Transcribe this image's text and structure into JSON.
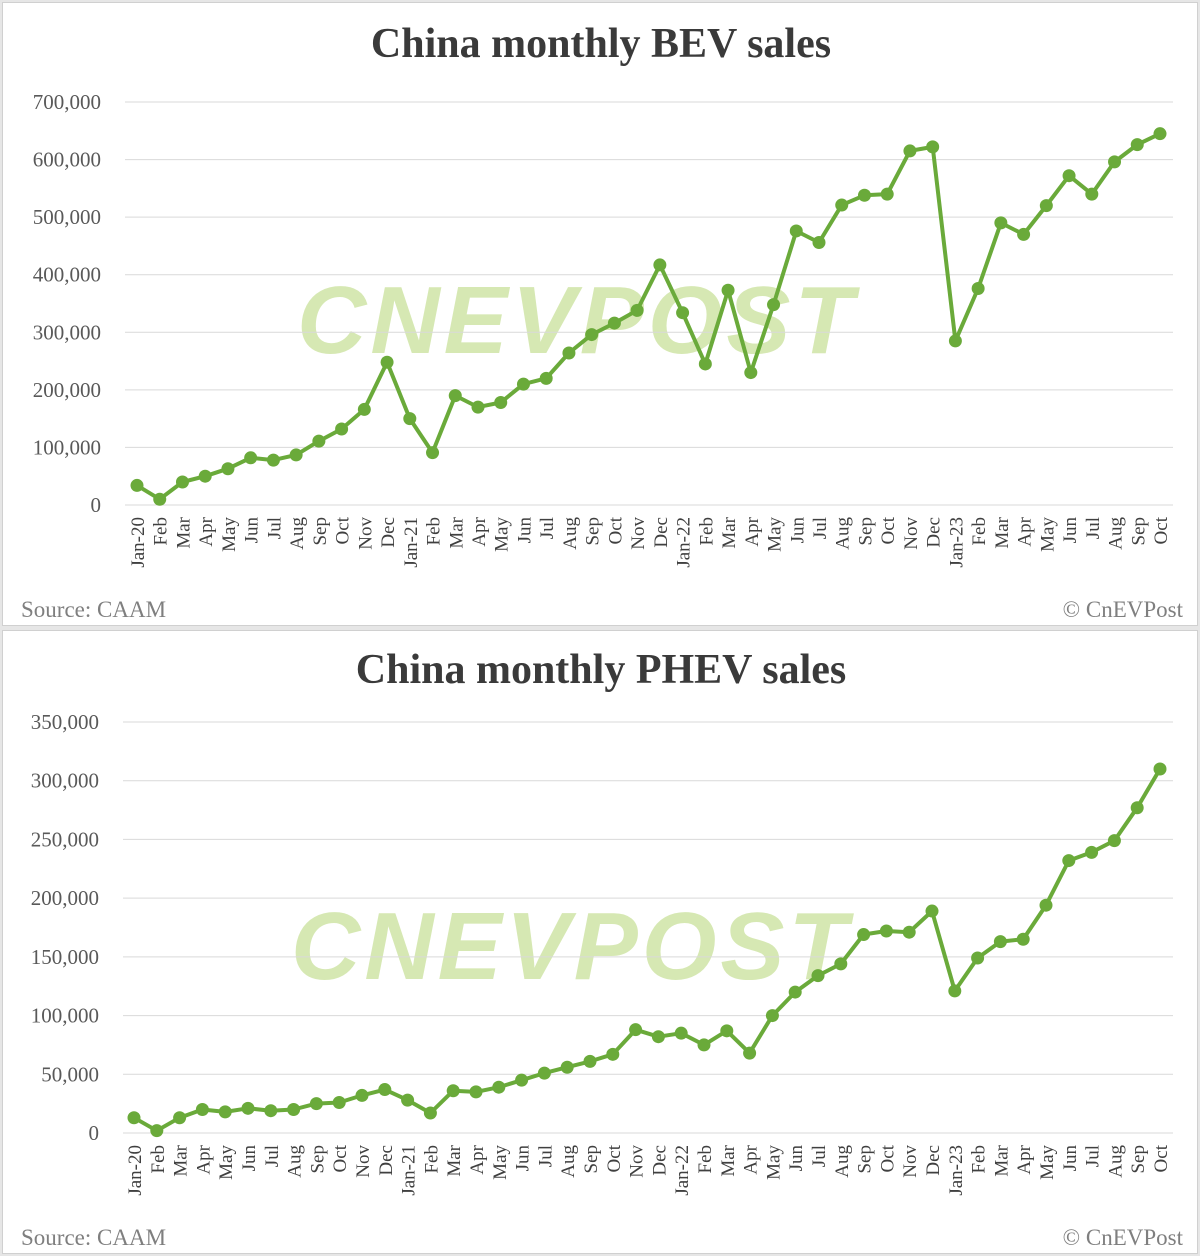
{
  "watermark_text": "CNEVPOST",
  "colors": {
    "line": "#6aaa3a",
    "marker": "#6aaa3a",
    "watermark": "#c9e19a"
  },
  "chart_data": [
    {
      "type": "line",
      "title": "China monthly BEV sales",
      "source": "Source: CAAM",
      "credit": "© CnEVPost",
      "xlabel": "",
      "ylabel": "",
      "ylim": [
        0,
        700000
      ],
      "yticks": [
        "0",
        "100,000",
        "200,000",
        "300,000",
        "400,000",
        "500,000",
        "600,000",
        "700,000"
      ],
      "grid": true,
      "categories": [
        "Jan-20",
        "Feb",
        "Mar",
        "Apr",
        "May",
        "Jun",
        "Jul",
        "Aug",
        "Sep",
        "Oct",
        "Nov",
        "Dec",
        "Jan-21",
        "Feb",
        "Mar",
        "Apr",
        "May",
        "Jun",
        "Jul",
        "Aug",
        "Sep",
        "Oct",
        "Nov",
        "Dec",
        "Jan-22",
        "Feb",
        "Mar",
        "Apr",
        "May",
        "Jun",
        "Jul",
        "Aug",
        "Sep",
        "Oct",
        "Nov",
        "Dec",
        "Jan-23",
        "Feb",
        "Mar",
        "Apr",
        "May",
        "Jun",
        "Jul",
        "Aug",
        "Sep",
        "Oct"
      ],
      "series": [
        {
          "values": [
            34000,
            10000,
            40000,
            50000,
            63000,
            82000,
            78000,
            87000,
            111000,
            132000,
            166000,
            248000,
            150000,
            91000,
            190000,
            170000,
            178000,
            210000,
            220000,
            264000,
            296000,
            316000,
            338000,
            417000,
            334000,
            245000,
            373000,
            230000,
            348000,
            476000,
            456000,
            521000,
            538000,
            540000,
            615000,
            622000,
            285000,
            376000,
            490000,
            470000,
            520000,
            572000,
            540000,
            596000,
            626000,
            645000
          ]
        }
      ]
    },
    {
      "type": "line",
      "title": "China monthly PHEV sales",
      "source": "Source: CAAM",
      "credit": "© CnEVPost",
      "xlabel": "",
      "ylabel": "",
      "ylim": [
        0,
        350000
      ],
      "yticks": [
        "0",
        "50,000",
        "100,000",
        "150,000",
        "200,000",
        "250,000",
        "300,000",
        "350,000"
      ],
      "grid": true,
      "categories": [
        "Jan-20",
        "Feb",
        "Mar",
        "Apr",
        "May",
        "Jun",
        "Jul",
        "Aug",
        "Sep",
        "Oct",
        "Nov",
        "Dec",
        "Jan-21",
        "Feb",
        "Mar",
        "Apr",
        "May",
        "Jun",
        "Jul",
        "Aug",
        "Sep",
        "Oct",
        "Nov",
        "Dec",
        "Jan-22",
        "Feb",
        "Mar",
        "Apr",
        "May",
        "Jun",
        "Jul",
        "Aug",
        "Sep",
        "Oct",
        "Nov",
        "Dec",
        "Jan-23",
        "Feb",
        "Mar",
        "Apr",
        "May",
        "Jun",
        "Jul",
        "Aug",
        "Sep",
        "Oct"
      ],
      "series": [
        {
          "values": [
            13000,
            2000,
            13000,
            20000,
            18000,
            21000,
            19000,
            20000,
            25000,
            26000,
            32000,
            37000,
            28000,
            17000,
            36000,
            35000,
            39000,
            45000,
            51000,
            56000,
            61000,
            67000,
            88000,
            82000,
            85000,
            75000,
            87000,
            68000,
            100000,
            120000,
            134000,
            144000,
            169000,
            172000,
            171000,
            189000,
            121000,
            149000,
            163000,
            165000,
            194000,
            232000,
            239000,
            249000,
            277000,
            310000
          ]
        }
      ]
    }
  ]
}
